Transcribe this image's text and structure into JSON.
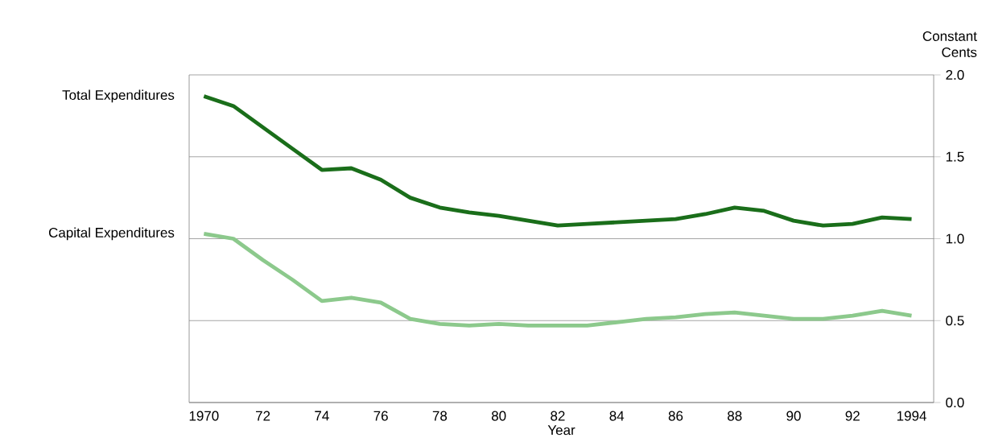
{
  "chart_data": {
    "type": "line",
    "xlabel": "Year",
    "ylabel": "Constant Cents",
    "x": [
      1970,
      1971,
      1972,
      1973,
      1974,
      1975,
      1976,
      1977,
      1978,
      1979,
      1980,
      1981,
      1982,
      1983,
      1984,
      1985,
      1986,
      1987,
      1988,
      1989,
      1990,
      1991,
      1992,
      1993,
      1994
    ],
    "series": [
      {
        "name": "Total Expenditures",
        "color": "#1a6e1a",
        "values": [
          1.87,
          1.81,
          1.68,
          1.55,
          1.42,
          1.43,
          1.36,
          1.25,
          1.19,
          1.16,
          1.14,
          1.11,
          1.08,
          1.09,
          1.1,
          1.11,
          1.12,
          1.15,
          1.19,
          1.17,
          1.11,
          1.08,
          1.09,
          1.13,
          1.12
        ]
      },
      {
        "name": "Capital Expenditures",
        "color": "#8cc98c",
        "values": [
          1.03,
          1.0,
          0.87,
          0.75,
          0.62,
          0.64,
          0.61,
          0.51,
          0.48,
          0.47,
          0.48,
          0.47,
          0.47,
          0.47,
          0.49,
          0.51,
          0.52,
          0.54,
          0.55,
          0.53,
          0.51,
          0.51,
          0.53,
          0.56,
          0.53
        ]
      }
    ],
    "xlim": [
      1969.5,
      1994.75
    ],
    "ylim": [
      0,
      2
    ],
    "xticks": [
      1970,
      {
        "value": 1972,
        "label": "72"
      },
      {
        "value": 1974,
        "label": "74"
      },
      {
        "value": 1976,
        "label": "76"
      },
      {
        "value": 1978,
        "label": "78"
      },
      {
        "value": 1980,
        "label": "80"
      },
      {
        "value": 1982,
        "label": "82"
      },
      {
        "value": 1984,
        "label": "84"
      },
      {
        "value": 1986,
        "label": "86"
      },
      {
        "value": 1988,
        "label": "88"
      },
      {
        "value": 1990,
        "label": "90"
      },
      {
        "value": 1992,
        "label": "92"
      },
      1994
    ],
    "yticks": [
      {
        "value": 0,
        "label": "0.0"
      },
      0.5,
      {
        "value": 1,
        "label": "1.0"
      },
      1.5,
      {
        "value": 2,
        "label": "2.0"
      }
    ],
    "grid": "y",
    "legend": false,
    "marker": "none",
    "line_style": "solid"
  }
}
